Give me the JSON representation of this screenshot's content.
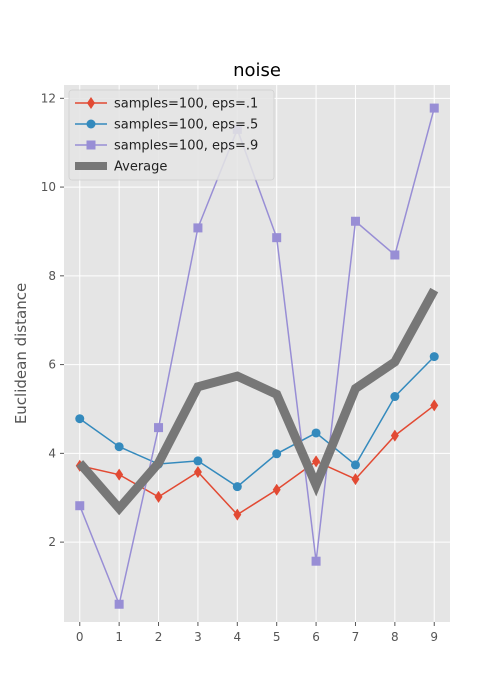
{
  "chart_data": {
    "type": "line",
    "title": "noise",
    "xlabel": "",
    "ylabel": "Euclidean distance",
    "x": [
      0,
      1,
      2,
      3,
      4,
      5,
      6,
      7,
      8,
      9
    ],
    "xticks": [
      "0",
      "1",
      "2",
      "3",
      "4",
      "5",
      "6",
      "7",
      "8",
      "9"
    ],
    "yticks": [
      "2",
      "4",
      "6",
      "8",
      "10",
      "12"
    ],
    "xlim": [
      -0.4,
      9.4
    ],
    "ylim": [
      0.2,
      12.3
    ],
    "grid": true,
    "legend_position": "top-left",
    "series": [
      {
        "name": "samples=100, eps=.1",
        "color": "#E24A33",
        "marker": "diamond",
        "values": [
          3.72,
          3.52,
          3.02,
          3.58,
          2.62,
          3.18,
          3.82,
          3.42,
          4.4,
          5.08
        ]
      },
      {
        "name": "samples=100, eps=.5",
        "color": "#348ABD",
        "marker": "circle",
        "values": [
          4.78,
          4.15,
          3.76,
          3.83,
          3.25,
          3.99,
          4.46,
          3.74,
          5.28,
          6.18
        ]
      },
      {
        "name": "samples=100, eps=.9",
        "color": "#988ED5",
        "marker": "square",
        "values": [
          2.82,
          0.6,
          4.58,
          9.08,
          11.3,
          8.86,
          1.57,
          9.23,
          8.47,
          11.78
        ]
      },
      {
        "name": "Average",
        "color": "#777777",
        "marker": "none",
        "thick": true,
        "values": [
          3.78,
          2.76,
          3.78,
          5.5,
          5.74,
          5.33,
          3.29,
          5.46,
          6.06,
          7.68
        ]
      }
    ]
  }
}
